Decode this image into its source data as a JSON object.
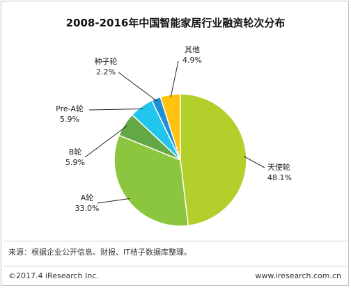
{
  "chart_data": {
    "type": "pie",
    "title": "2008-2016年中国智能家居行业融资轮次分布",
    "slices": [
      {
        "label": "天使轮",
        "value": 48.1,
        "value_label": "48.1%",
        "color": "#b3cf2b"
      },
      {
        "label": "A轮",
        "value": 33.0,
        "value_label": "33.0%",
        "color": "#8cc63f"
      },
      {
        "label": "B轮",
        "value": 5.9,
        "value_label": "5.9%",
        "color": "#62a845"
      },
      {
        "label": "Pre-A轮",
        "value": 5.9,
        "value_label": "5.9%",
        "color": "#22c5ee"
      },
      {
        "label": "种子轮",
        "value": 2.2,
        "value_label": "2.2%",
        "color": "#1c8fd6"
      },
      {
        "label": "其他",
        "value": 4.9,
        "value_label": "4.9%",
        "color": "#ffc20e"
      }
    ]
  },
  "footer": {
    "source": "来源：根据企业公开信息、财报、IT桔子数据库整理。",
    "copyright": "©2017.4 iResearch Inc.",
    "website": "www.iresearch.com.cn"
  }
}
